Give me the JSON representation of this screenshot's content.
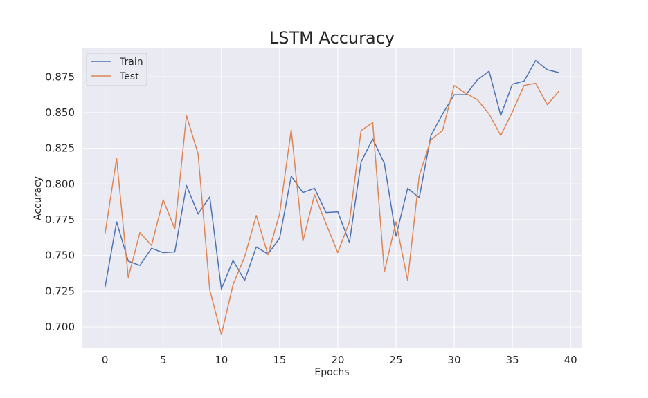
{
  "chart_data": {
    "type": "line",
    "title": "LSTM Accuracy",
    "xlabel": "Epochs",
    "ylabel": "Accuracy",
    "xlim": [
      -2,
      41
    ],
    "ylim": [
      0.685,
      0.895
    ],
    "x_ticks": [
      0,
      5,
      10,
      15,
      20,
      25,
      30,
      35,
      40
    ],
    "y_ticks": [
      0.7,
      0.725,
      0.75,
      0.775,
      0.8,
      0.825,
      0.85,
      0.875
    ],
    "x_tick_labels": [
      "0",
      "5",
      "10",
      "15",
      "20",
      "25",
      "30",
      "35",
      "40"
    ],
    "y_tick_labels": [
      "0.700",
      "0.725",
      "0.750",
      "0.775",
      "0.800",
      "0.825",
      "0.850",
      "0.875"
    ],
    "grid": true,
    "legend_position": "top-left",
    "background_color": "#eaeaf2",
    "x": [
      0,
      1,
      2,
      3,
      4,
      5,
      6,
      7,
      8,
      9,
      10,
      11,
      12,
      13,
      14,
      15,
      16,
      17,
      18,
      19,
      20,
      21,
      22,
      23,
      24,
      25,
      26,
      27,
      28,
      29,
      30,
      31,
      32,
      33,
      34,
      35,
      36,
      37,
      38,
      39
    ],
    "series": [
      {
        "name": "Train",
        "color": "#4c72b0",
        "values": [
          0.7275,
          0.7735,
          0.746,
          0.743,
          0.755,
          0.752,
          0.7525,
          0.799,
          0.779,
          0.791,
          0.7265,
          0.7465,
          0.7325,
          0.756,
          0.751,
          0.762,
          0.8055,
          0.794,
          0.797,
          0.78,
          0.7805,
          0.759,
          0.8155,
          0.8315,
          0.8145,
          0.7635,
          0.797,
          0.7905,
          0.834,
          0.849,
          0.8625,
          0.8625,
          0.873,
          0.879,
          0.848,
          0.87,
          0.872,
          0.8865,
          0.88,
          0.878
        ]
      },
      {
        "name": "Test",
        "color": "#dd8452",
        "values": [
          0.765,
          0.818,
          0.7345,
          0.766,
          0.757,
          0.789,
          0.7685,
          0.848,
          0.821,
          0.726,
          0.6945,
          0.7295,
          0.749,
          0.778,
          0.7505,
          0.779,
          0.838,
          0.76,
          0.7925,
          0.772,
          0.752,
          0.7735,
          0.8375,
          0.843,
          0.7385,
          0.7735,
          0.7325,
          0.806,
          0.831,
          0.8375,
          0.869,
          0.8635,
          0.859,
          0.849,
          0.834,
          0.8505,
          0.869,
          0.8705,
          0.8555,
          0.865
        ]
      }
    ]
  }
}
